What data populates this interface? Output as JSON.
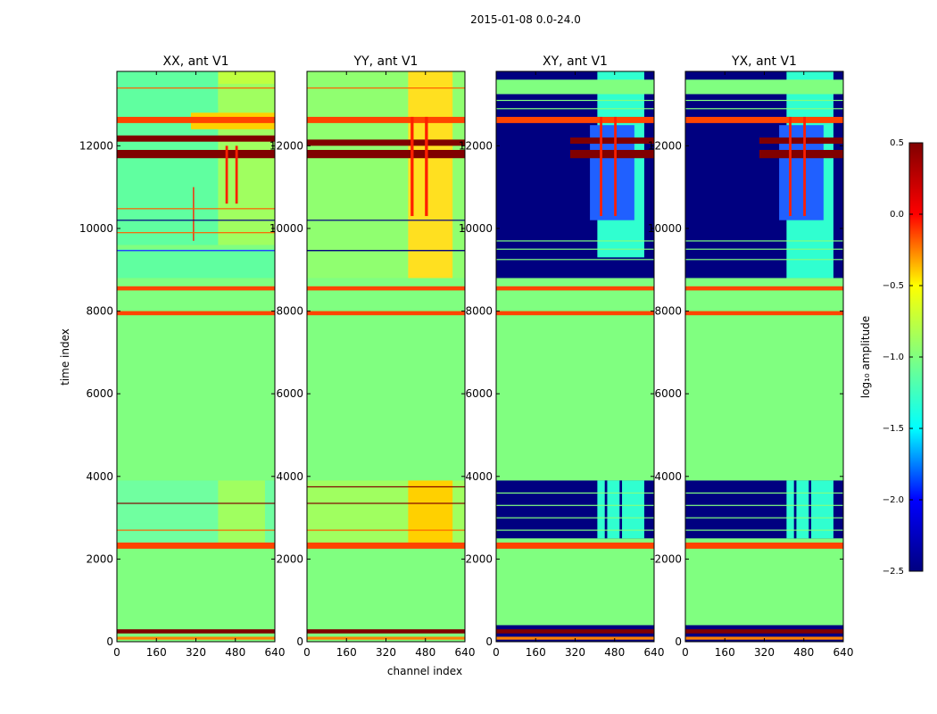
{
  "chart_data": {
    "type": "heatmap",
    "suptitle": "2015-01-08 0.0-24.0",
    "xlabel": "channel index",
    "ylabel": "time index",
    "xlim": [
      0,
      640
    ],
    "ylim": [
      0,
      13800
    ],
    "x_ticks": [
      0,
      160,
      320,
      480,
      640
    ],
    "y_ticks": [
      0,
      2000,
      4000,
      6000,
      8000,
      10000,
      12000
    ],
    "panels": [
      {
        "id": "xx",
        "title": "XX, ant V1",
        "background": "#80ff80",
        "regions": [
          {
            "t0": 9600,
            "t1": 13800,
            "c0": 0,
            "c1": 640,
            "color": "#60ffa0"
          },
          {
            "t0": 8800,
            "t1": 9500,
            "c0": 0,
            "c1": 640,
            "color": "#60ffa0"
          },
          {
            "t0": 2400,
            "t1": 3900,
            "c0": 0,
            "c1": 640,
            "color": "#70ffa0"
          },
          {
            "t0": 13000,
            "t1": 13800,
            "c0": 410,
            "c1": 640,
            "color": "#c0ff40"
          },
          {
            "t0": 2400,
            "t1": 3900,
            "c0": 410,
            "c1": 600,
            "color": "#a0ff60"
          },
          {
            "t0": 9600,
            "t1": 13500,
            "c0": 410,
            "c1": 640,
            "color": "#a0ff60"
          },
          {
            "t0": 12400,
            "t1": 12800,
            "c0": 300,
            "c1": 640,
            "color": "#ffd000"
          },
          {
            "t0": 11700,
            "t1": 11900,
            "c0": 0,
            "c1": 640,
            "color": "#800000"
          },
          {
            "t0": 12100,
            "t1": 12250,
            "c0": 0,
            "c1": 640,
            "color": "#800000"
          },
          {
            "t0": 12550,
            "t1": 12700,
            "c0": 0,
            "c1": 640,
            "color": "#ff4400"
          },
          {
            "t0": 8500,
            "t1": 8600,
            "c0": 0,
            "c1": 640,
            "color": "#ff4400"
          },
          {
            "t0": 7900,
            "t1": 8000,
            "c0": 0,
            "c1": 640,
            "color": "#ff4400"
          },
          {
            "t0": 2250,
            "t1": 2400,
            "c0": 0,
            "c1": 640,
            "color": "#ff4400"
          },
          {
            "t0": 200,
            "t1": 300,
            "c0": 0,
            "c1": 640,
            "color": "#800000"
          },
          {
            "t0": 50,
            "t1": 120,
            "c0": 0,
            "c1": 640,
            "color": "#ff8000"
          },
          {
            "t0": 9450,
            "t1": 9480,
            "c0": 0,
            "c1": 640,
            "color": "#2040ff"
          },
          {
            "t0": 10600,
            "t1": 12000,
            "c0": 440,
            "c1": 450,
            "color": "#ff2000"
          },
          {
            "t0": 10600,
            "t1": 12000,
            "c0": 480,
            "c1": 490,
            "color": "#ff2000"
          },
          {
            "t0": 9700,
            "t1": 11000,
            "c0": 308,
            "c1": 313,
            "color": "#ff2000"
          }
        ],
        "lines": [
          {
            "t": 13400,
            "color": "#ff6000"
          },
          {
            "t": 10200,
            "color": "#000080"
          },
          {
            "t": 10480,
            "color": "#ff6000"
          },
          {
            "t": 9900,
            "color": "#ff6000"
          },
          {
            "t": 3350,
            "color": "#800000"
          },
          {
            "t": 2700,
            "color": "#ff6000"
          }
        ]
      },
      {
        "id": "yy",
        "title": "YY, ant V1",
        "background": "#80ff80",
        "regions": [
          {
            "t0": 8800,
            "t1": 13800,
            "c0": 0,
            "c1": 640,
            "color": "#90ff70"
          },
          {
            "t0": 8800,
            "t1": 13800,
            "c0": 410,
            "c1": 590,
            "color": "#ffe020"
          },
          {
            "t0": 2400,
            "t1": 3900,
            "c0": 0,
            "c1": 640,
            "color": "#a0ff60"
          },
          {
            "t0": 2400,
            "t1": 3900,
            "c0": 410,
            "c1": 590,
            "color": "#ffd000"
          },
          {
            "t0": 12550,
            "t1": 12700,
            "c0": 0,
            "c1": 640,
            "color": "#ff4400"
          },
          {
            "t0": 11700,
            "t1": 11900,
            "c0": 0,
            "c1": 640,
            "color": "#800000"
          },
          {
            "t0": 12000,
            "t1": 12150,
            "c0": 0,
            "c1": 640,
            "color": "#800000"
          },
          {
            "t0": 8500,
            "t1": 8600,
            "c0": 0,
            "c1": 640,
            "color": "#ff4400"
          },
          {
            "t0": 7900,
            "t1": 8000,
            "c0": 0,
            "c1": 640,
            "color": "#ff4400"
          },
          {
            "t0": 2250,
            "t1": 2400,
            "c0": 0,
            "c1": 640,
            "color": "#ff4400"
          },
          {
            "t0": 200,
            "t1": 300,
            "c0": 0,
            "c1": 640,
            "color": "#800000"
          },
          {
            "t0": 50,
            "t1": 120,
            "c0": 0,
            "c1": 640,
            "color": "#ff8000"
          },
          {
            "t0": 9450,
            "t1": 9480,
            "c0": 0,
            "c1": 640,
            "color": "#000080"
          },
          {
            "t0": 10300,
            "t1": 12700,
            "c0": 420,
            "c1": 432,
            "color": "#ff2000"
          },
          {
            "t0": 10300,
            "t1": 12700,
            "c0": 478,
            "c1": 490,
            "color": "#ff2000"
          }
        ],
        "lines": [
          {
            "t": 13400,
            "color": "#ff6000"
          },
          {
            "t": 10200,
            "color": "#000080"
          },
          {
            "t": 3750,
            "color": "#800000"
          },
          {
            "t": 3350,
            "color": "#800000"
          },
          {
            "t": 2700,
            "color": "#ff6000"
          }
        ]
      },
      {
        "id": "xy",
        "title": "XY, ant V1",
        "background": "#80ff80",
        "regions": [
          {
            "t0": 8800,
            "t1": 13800,
            "c0": 0,
            "c1": 640,
            "color": "#000080"
          },
          {
            "t0": 8800,
            "t1": 13800,
            "c0": 410,
            "c1": 600,
            "color": "#30ffd0"
          },
          {
            "t0": 10200,
            "t1": 12500,
            "c0": 380,
            "c1": 560,
            "color": "#2060ff"
          },
          {
            "t0": 13250,
            "t1": 13600,
            "c0": 0,
            "c1": 640,
            "color": "#80ff80"
          },
          {
            "t0": 8800,
            "t1": 9300,
            "c0": 0,
            "c1": 640,
            "color": "#000080"
          },
          {
            "t0": 2500,
            "t1": 3900,
            "c0": 0,
            "c1": 640,
            "color": "#000080"
          },
          {
            "t0": 2500,
            "t1": 3900,
            "c0": 410,
            "c1": 600,
            "color": "#30ffd0"
          },
          {
            "t0": 2500,
            "t1": 3900,
            "c0": 440,
            "c1": 450,
            "color": "#000080"
          },
          {
            "t0": 2500,
            "t1": 3900,
            "c0": 500,
            "c1": 510,
            "color": "#000080"
          },
          {
            "t0": 12550,
            "t1": 12700,
            "c0": 0,
            "c1": 640,
            "color": "#ff4400"
          },
          {
            "t0": 11700,
            "t1": 11900,
            "c0": 300,
            "c1": 640,
            "color": "#800000"
          },
          {
            "t0": 12050,
            "t1": 12200,
            "c0": 300,
            "c1": 640,
            "color": "#800000"
          },
          {
            "t0": 8500,
            "t1": 8600,
            "c0": 0,
            "c1": 640,
            "color": "#ff4400"
          },
          {
            "t0": 7900,
            "t1": 8000,
            "c0": 0,
            "c1": 640,
            "color": "#ff4400"
          },
          {
            "t0": 2250,
            "t1": 2400,
            "c0": 0,
            "c1": 640,
            "color": "#ff4400"
          },
          {
            "t0": 0,
            "t1": 400,
            "c0": 0,
            "c1": 640,
            "color": "#000080"
          },
          {
            "t0": 200,
            "t1": 300,
            "c0": 0,
            "c1": 640,
            "color": "#800000"
          },
          {
            "t0": 50,
            "t1": 120,
            "c0": 0,
            "c1": 640,
            "color": "#ff8000"
          },
          {
            "t0": 10300,
            "t1": 12700,
            "c0": 420,
            "c1": 430,
            "color": "#ff2000"
          },
          {
            "t0": 10300,
            "t1": 12700,
            "c0": 478,
            "c1": 488,
            "color": "#ff2000"
          }
        ],
        "lines": [
          {
            "t": 13100,
            "color": "#80ff80"
          },
          {
            "t": 12900,
            "color": "#80ff80"
          },
          {
            "t": 9700,
            "color": "#80ff80"
          },
          {
            "t": 9500,
            "color": "#80ff80"
          },
          {
            "t": 9250,
            "color": "#80ff80"
          },
          {
            "t": 3600,
            "color": "#80ff80"
          },
          {
            "t": 3300,
            "color": "#80ff80"
          },
          {
            "t": 3000,
            "color": "#80ff80"
          },
          {
            "t": 2700,
            "color": "#80ff80"
          }
        ]
      },
      {
        "id": "yx",
        "title": "YX, ant V1",
        "background": "#80ff80",
        "regions": [
          {
            "t0": 8800,
            "t1": 13800,
            "c0": 0,
            "c1": 640,
            "color": "#000080"
          },
          {
            "t0": 8800,
            "t1": 13800,
            "c0": 410,
            "c1": 600,
            "color": "#30ffd0"
          },
          {
            "t0": 10200,
            "t1": 12500,
            "c0": 380,
            "c1": 560,
            "color": "#2060ff"
          },
          {
            "t0": 13250,
            "t1": 13600,
            "c0": 0,
            "c1": 640,
            "color": "#80ff80"
          },
          {
            "t0": 2500,
            "t1": 3900,
            "c0": 0,
            "c1": 640,
            "color": "#000080"
          },
          {
            "t0": 2500,
            "t1": 3900,
            "c0": 410,
            "c1": 600,
            "color": "#30ffd0"
          },
          {
            "t0": 2500,
            "t1": 3900,
            "c0": 440,
            "c1": 450,
            "color": "#000080"
          },
          {
            "t0": 2500,
            "t1": 3900,
            "c0": 500,
            "c1": 510,
            "color": "#000080"
          },
          {
            "t0": 12550,
            "t1": 12700,
            "c0": 0,
            "c1": 640,
            "color": "#ff4400"
          },
          {
            "t0": 11700,
            "t1": 11900,
            "c0": 300,
            "c1": 640,
            "color": "#800000"
          },
          {
            "t0": 12050,
            "t1": 12200,
            "c0": 300,
            "c1": 640,
            "color": "#800000"
          },
          {
            "t0": 8500,
            "t1": 8600,
            "c0": 0,
            "c1": 640,
            "color": "#ff4400"
          },
          {
            "t0": 7900,
            "t1": 8000,
            "c0": 0,
            "c1": 640,
            "color": "#ff4400"
          },
          {
            "t0": 2250,
            "t1": 2400,
            "c0": 0,
            "c1": 640,
            "color": "#ff4400"
          },
          {
            "t0": 0,
            "t1": 400,
            "c0": 0,
            "c1": 640,
            "color": "#000080"
          },
          {
            "t0": 200,
            "t1": 300,
            "c0": 0,
            "c1": 640,
            "color": "#800000"
          },
          {
            "t0": 50,
            "t1": 120,
            "c0": 0,
            "c1": 640,
            "color": "#ff8000"
          },
          {
            "t0": 10300,
            "t1": 12700,
            "c0": 420,
            "c1": 430,
            "color": "#ff2000"
          },
          {
            "t0": 10300,
            "t1": 12700,
            "c0": 478,
            "c1": 488,
            "color": "#ff2000"
          }
        ],
        "lines": [
          {
            "t": 13100,
            "color": "#80ff80"
          },
          {
            "t": 12900,
            "color": "#80ff80"
          },
          {
            "t": 9700,
            "color": "#80ff80"
          },
          {
            "t": 9500,
            "color": "#80ff80"
          },
          {
            "t": 9250,
            "color": "#80ff80"
          },
          {
            "t": 3600,
            "color": "#80ff80"
          },
          {
            "t": 3300,
            "color": "#80ff80"
          },
          {
            "t": 3000,
            "color": "#80ff80"
          },
          {
            "t": 2700,
            "color": "#80ff80"
          }
        ]
      }
    ],
    "colorbar": {
      "label": "log₁₀ amplitude",
      "range": [
        -2.5,
        0.5
      ],
      "ticks": [
        0.5,
        0.0,
        -0.5,
        -1.0,
        -1.5,
        -2.0,
        -2.5
      ],
      "tick_labels": [
        "0.5",
        "0.0",
        "−0.5",
        "−1.0",
        "−1.5",
        "−2.0",
        "−2.5"
      ],
      "colormap": "jet",
      "stops": [
        "#000080",
        "#0000ff",
        "#00ffff",
        "#80ff80",
        "#ffff00",
        "#ff0000",
        "#800000"
      ]
    }
  }
}
